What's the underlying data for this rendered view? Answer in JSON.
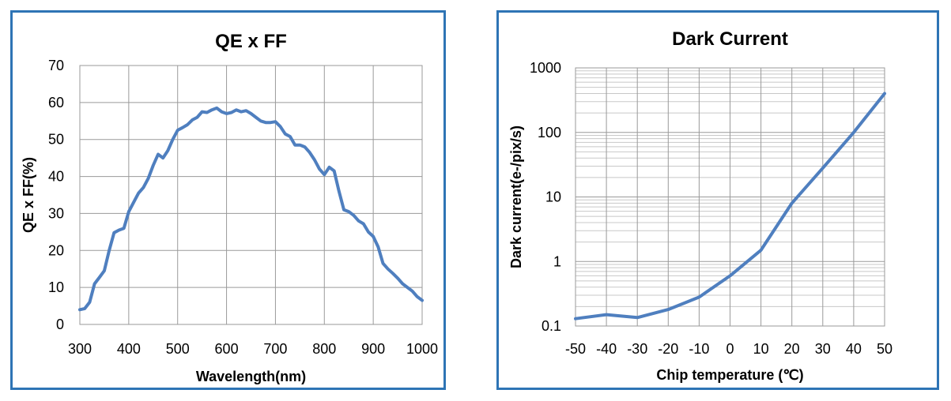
{
  "colors": {
    "border": "#2e74b5",
    "series": "#4f7fbf",
    "grid": "#9a9a9a"
  },
  "chart_data": [
    {
      "type": "line",
      "title": "QE x FF",
      "xlabel": "Wavelength(nm)",
      "ylabel": "QE x FF(%)",
      "xlim": [
        300,
        1000
      ],
      "ylim": [
        0,
        70
      ],
      "xticks": [
        "300",
        "400",
        "500",
        "600",
        "700",
        "800",
        "900",
        "1000"
      ],
      "yticks": [
        "0",
        "10",
        "20",
        "30",
        "40",
        "50",
        "60",
        "70"
      ],
      "grid": true,
      "series": [
        {
          "x": [
            300,
            310,
            320,
            330,
            340,
            350,
            360,
            370,
            380,
            390,
            400,
            410,
            420,
            430,
            440,
            450,
            460,
            470,
            480,
            490,
            500,
            510,
            520,
            530,
            540,
            550,
            560,
            570,
            580,
            590,
            600,
            610,
            620,
            630,
            640,
            650,
            660,
            670,
            680,
            690,
            700,
            710,
            720,
            730,
            740,
            750,
            760,
            770,
            780,
            790,
            800,
            810,
            820,
            830,
            840,
            850,
            860,
            870,
            880,
            890,
            900,
            910,
            920,
            930,
            940,
            950,
            960,
            970,
            980,
            990,
            1000
          ],
          "y": [
            4,
            4.3,
            6,
            11,
            12.7,
            14.5,
            20,
            24.8,
            25.5,
            26,
            30.5,
            33,
            35.5,
            37,
            39.5,
            43,
            46,
            45,
            47,
            50,
            52.5,
            53.2,
            54,
            55.3,
            56,
            57.5,
            57.3,
            58,
            58.5,
            57.5,
            57,
            57.3,
            58,
            57.5,
            57.8,
            57,
            56,
            55,
            54.6,
            54.6,
            54.8,
            53.5,
            51.5,
            50.8,
            48.5,
            48.5,
            48,
            46.5,
            44.5,
            42,
            40.5,
            42.5,
            41.5,
            36,
            31,
            30.5,
            29.5,
            28,
            27.2,
            25,
            23.8,
            21,
            16.5,
            15,
            13.8,
            12.5,
            11,
            10,
            9,
            7.5,
            6.5
          ]
        }
      ]
    },
    {
      "type": "line",
      "title": "Dark Current",
      "xlabel": "Chip temperature (℃)",
      "ylabel": "Dark current(e-/pix/s)",
      "xlim": [
        -50,
        50
      ],
      "ylim": [
        0.1,
        1000
      ],
      "yscale": "log",
      "xticks": [
        "-50",
        "-40",
        "-30",
        "-20",
        "-10",
        "0",
        "10",
        "20",
        "30",
        "40",
        "50"
      ],
      "yticks": [
        "0.1",
        "1",
        "10",
        "100",
        "1000"
      ],
      "grid": true,
      "series": [
        {
          "x": [
            -50,
            -40,
            -30,
            -20,
            -10,
            0,
            10,
            20,
            30,
            40,
            50
          ],
          "y": [
            0.13,
            0.15,
            0.135,
            0.18,
            0.28,
            0.6,
            1.5,
            8,
            28,
            100,
            400
          ]
        }
      ]
    }
  ]
}
